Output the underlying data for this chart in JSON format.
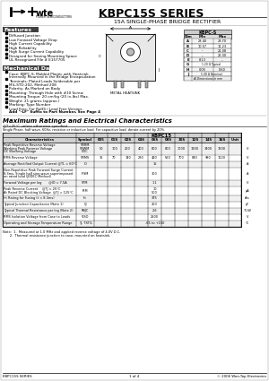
{
  "title": "KBPC15S SERIES",
  "subtitle": "15A SINGLE-PHASE BRIDGE RECTIFIER",
  "bg_color": "#ffffff",
  "features_title": "Features",
  "features": [
    "Diffused Junction",
    "Low Forward Voltage Drop",
    "High Current Capability",
    "High Reliability",
    "High Surge Current Capability",
    "Designed for Saving Mounting Space",
    "UL Recognized File # E157705"
  ],
  "mech_title": "Mechanical Data",
  "mech_items": [
    [
      "Case: KBPC-S, Molded Plastic with Heatsink",
      "Internally Mounted in the Bridge Encapsulation"
    ],
    [
      "Terminals: Plated Leads Solderable per",
      "MIL-STD-202, Method 208"
    ],
    [
      "Polarity: As Marked on Body"
    ],
    [
      "Mounting: Through Hole with #10 Screw"
    ],
    [
      "Mounting Torque: 20 cm/kg (20 in-lbs) Max."
    ],
    [
      "Weight: 21 grams (approx.)"
    ],
    [
      "Marking: Type Number"
    ],
    [
      "Lead Free: For RoHS / Lead Free Version,",
      "Add \"-LF\" Suffix to Part Number, See Page 4"
    ]
  ],
  "ratings_title": "Maximum Ratings and Electrical Characteristics",
  "ratings_cond": "@T=25°C unless otherwise specified",
  "ratings_note": "Single Phase, half wave, 60Hz, resistive or inductive load. For capacitive load, derate current by 20%.",
  "col_headers": [
    "005",
    "01S",
    "02S",
    "04S",
    "06S",
    "08S",
    "10S",
    "12S",
    "14S",
    "16S"
  ],
  "table_rows": [
    {
      "char": [
        "Peak Repetitive Reverse Voltage",
        "Working Peak Reverse Voltage",
        "DC Blocking Voltage"
      ],
      "sym": [
        "VRRM",
        "VRWM",
        "VDC"
      ],
      "vals": [
        "50",
        "100",
        "200",
        "400",
        "600",
        "800",
        "1000",
        "1200",
        "1400",
        "1600"
      ],
      "unit": "V",
      "rh": 14
    },
    {
      "char": [
        "RMS Reverse Voltage"
      ],
      "sym": [
        "VRMS"
      ],
      "vals": [
        "35",
        "70",
        "140",
        "280",
        "420",
        "560",
        "700",
        "840",
        "980",
        "1120"
      ],
      "unit": "V",
      "rh": 7
    },
    {
      "char": [
        "Average Rectified Output Current @TL = 60°C"
      ],
      "sym": [
        "IO"
      ],
      "vals": [
        "",
        "",
        "",
        "",
        "15",
        "",
        "",
        "",
        "",
        ""
      ],
      "unit": "A",
      "rh": 7
    },
    {
      "char": [
        "Non-Repetitive Peak Forward Surge Current",
        "8.3ms, Single half sine-wave superimposed",
        "on rated load (JEDEC Method)"
      ],
      "sym": [
        "IFSM"
      ],
      "vals": [
        "",
        "",
        "",
        "",
        "300",
        "",
        "",
        "",
        "",
        ""
      ],
      "unit": "A",
      "rh": 14
    },
    {
      "char": [
        "Forward Voltage per leg       @IO = 7.5A"
      ],
      "sym": [
        "VFM"
      ],
      "vals": [
        "",
        "",
        "",
        "",
        "1.1",
        "",
        "",
        "",
        "",
        ""
      ],
      "unit": "V",
      "rh": 7
    },
    {
      "char": [
        "Peak Reverse Current    @TJ = 25°C",
        "At Rated DC Blocking Voltage  @TJ = 125°C"
      ],
      "sym": [
        "IRM"
      ],
      "vals": [
        "",
        "",
        "",
        "",
        "10 / 500",
        "",
        "",
        "",
        "",
        ""
      ],
      "unit": "μA",
      "rh": 10
    },
    {
      "char": [
        "I²t Rating for Fusing (t < 8.3ms)"
      ],
      "sym": [
        "I²t"
      ],
      "vals": [
        "",
        "",
        "",
        "",
        "375",
        "",
        "",
        "",
        "",
        ""
      ],
      "unit": "A²s",
      "rh": 7
    },
    {
      "char": [
        "Typical Junction Capacitance (Note 1)"
      ],
      "sym": [
        "CJ"
      ],
      "vals": [
        "",
        "",
        "",
        "",
        "200",
        "",
        "",
        "",
        "",
        ""
      ],
      "unit": "pF",
      "rh": 7
    },
    {
      "char": [
        "Typical Thermal Resistance per leg (Note 2)"
      ],
      "sym": [
        "RθJC"
      ],
      "vals": [
        "",
        "",
        "",
        "",
        "2.6",
        "",
        "",
        "",
        "",
        ""
      ],
      "unit": "°C/W",
      "rh": 7
    },
    {
      "char": [
        "RMS Isolation Voltage from Case to Leads"
      ],
      "sym": [
        "VISO"
      ],
      "vals": [
        "",
        "",
        "",
        "",
        "2500",
        "",
        "",
        "",
        "",
        ""
      ],
      "unit": "V",
      "rh": 7
    },
    {
      "char": [
        "Operating and Storage Temperature Range"
      ],
      "sym": [
        "TJ, TSTG"
      ],
      "vals": [
        "",
        "",
        "",
        "",
        "-65 to +150",
        "",
        "",
        "",
        "",
        ""
      ],
      "unit": "°C",
      "rh": 7
    }
  ],
  "notes": [
    "Note:  1.  Measured at 1.0 MHz and applied reverse voltage of 4.0V D.C.",
    "       2.  Thermal resistance junction to case, mounted on heatsink."
  ],
  "footer_left": "KBPC15S SERIES",
  "footer_center": "1 of 4",
  "footer_right": "© 2006 Won-Top Electronics",
  "dim_rows": [
    [
      "A",
      "28.40",
      "28.70"
    ],
    [
      "B",
      "10.57",
      "11.23"
    ],
    [
      "C",
      "--",
      "21.08"
    ],
    [
      "D",
      "--",
      "26.00"
    ],
    [
      "E",
      "8.13",
      "--"
    ],
    [
      "G",
      "1.20 Ω Typical",
      ""
    ],
    [
      "H",
      "0.05",
      "0.60"
    ],
    [
      "J",
      "5.08 Ω Nominal",
      ""
    ],
    [
      "",
      "All Dimensions in mm",
      ""
    ]
  ]
}
